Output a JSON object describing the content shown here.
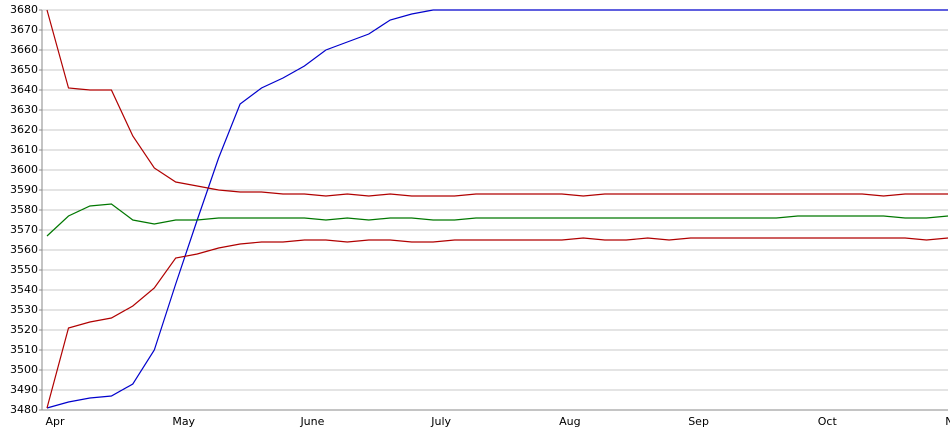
{
  "chart_data": {
    "type": "line",
    "categories": [
      "Apr",
      null,
      null,
      null,
      null,
      null,
      "May",
      null,
      null,
      null,
      null,
      null,
      "June",
      null,
      null,
      null,
      null,
      null,
      "July",
      null,
      null,
      null,
      null,
      null,
      "Aug",
      null,
      null,
      null,
      null,
      null,
      "Sep",
      null,
      null,
      null,
      null,
      null,
      "Oct",
      null,
      null,
      null,
      null,
      null,
      "Nov"
    ],
    "series": [
      {
        "color": "#0000cc",
        "values": [
          3481,
          3484,
          3486,
          3487,
          3493,
          3510,
          3543,
          3575,
          3606,
          3633,
          3641,
          3646,
          3652,
          3660,
          3664,
          3668,
          3675,
          3678,
          3680,
          3680,
          3680,
          3680,
          3680,
          3680,
          3680,
          3680,
          3680,
          3680,
          3680,
          3680,
          3680,
          3680,
          3680,
          3680,
          3680,
          3680,
          3680,
          3680,
          3680,
          3680,
          3680,
          3680,
          3680
        ]
      },
      {
        "color": "#b00000",
        "values": [
          3680,
          3641,
          3640,
          3640,
          3617,
          3601,
          3594,
          3592,
          3590,
          3589,
          3589,
          3588,
          3588,
          3587,
          3588,
          3587,
          3588,
          3587,
          3587,
          3587,
          3588,
          3588,
          3588,
          3588,
          3588,
          3587,
          3588,
          3588,
          3588,
          3588,
          3588,
          3588,
          3588,
          3588,
          3588,
          3588,
          3588,
          3588,
          3588,
          3587,
          3588,
          3588,
          3588
        ]
      },
      {
        "color": "#007700",
        "values": [
          3567,
          3577,
          3582,
          3583,
          3575,
          3573,
          3575,
          3575,
          3576,
          3576,
          3576,
          3576,
          3576,
          3575,
          3576,
          3575,
          3576,
          3576,
          3575,
          3575,
          3576,
          3576,
          3576,
          3576,
          3576,
          3576,
          3576,
          3576,
          3576,
          3576,
          3576,
          3576,
          3576,
          3576,
          3576,
          3577,
          3577,
          3577,
          3577,
          3577,
          3576,
          3576,
          3577
        ]
      },
      {
        "color": "#b00000",
        "values": [
          3481,
          3521,
          3524,
          3526,
          3532,
          3541,
          3556,
          3558,
          3561,
          3563,
          3564,
          3564,
          3565,
          3565,
          3564,
          3565,
          3565,
          3564,
          3564,
          3565,
          3565,
          3565,
          3565,
          3565,
          3565,
          3566,
          3565,
          3565,
          3566,
          3565,
          3566,
          3566,
          3566,
          3566,
          3566,
          3566,
          3566,
          3566,
          3566,
          3566,
          3566,
          3565,
          3566
        ]
      }
    ],
    "ylim": [
      3480,
      3680
    ],
    "yticks": [
      3480,
      3490,
      3500,
      3510,
      3520,
      3530,
      3540,
      3550,
      3560,
      3570,
      3580,
      3590,
      3600,
      3610,
      3620,
      3630,
      3640,
      3650,
      3660,
      3670,
      3680
    ],
    "grid": true
  }
}
